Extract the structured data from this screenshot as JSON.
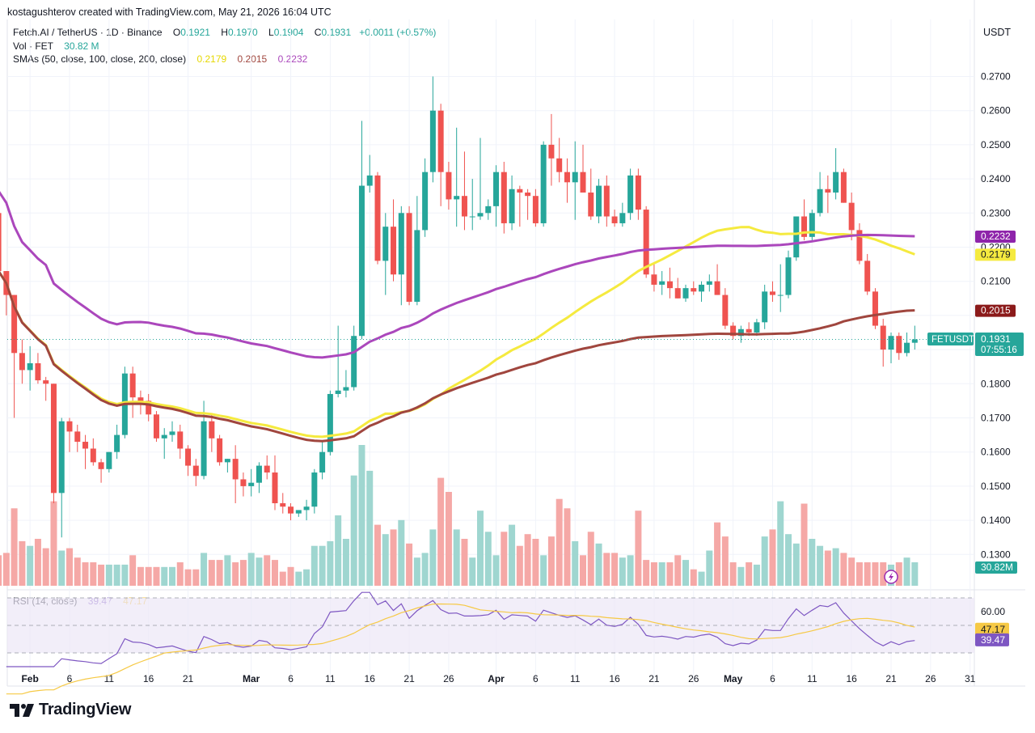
{
  "caption": "kostagushterov created with TradingView.com, May 21, 2026 16:04 UTC",
  "legend": {
    "symbol": "Fetch.AI / TetherUS · 1D · Binance",
    "o_label": "O",
    "o": "0.1921",
    "h_label": "H",
    "h": "0.1970",
    "l_label": "L",
    "l": "0.1904",
    "c_label": "C",
    "c": "0.1931",
    "change": "+0.0011 (+0.57%)",
    "vol_label": "Vol · FET",
    "vol": "30.82 M",
    "sma_label": "SMAs (50, close, 100, close, 200, close)",
    "sma50": "0.2179",
    "sma100": "0.2015",
    "sma200": "0.2232",
    "rsi_label": "RSI (14, close)",
    "rsi": "39.47",
    "rsi_ma": "47.17"
  },
  "unit": "USDT",
  "brand": "TradingView",
  "colors": {
    "up": "#26a69a",
    "down": "#ef5350",
    "vol_up": "#9fd6d0",
    "vol_down": "#f5a8a6",
    "sma50": "#f5ea3f",
    "sma100": "#a0463e",
    "sma200": "#ab47bc",
    "rsi": "#7e57c2",
    "rsi_ma": "#f6c945",
    "rsi_band": "#ede7f6"
  },
  "chart_data": {
    "type": "candlestick",
    "price_axis": {
      "ticks": [
        "0.1300",
        "0.1400",
        "0.1500",
        "0.1600",
        "0.1700",
        "0.1800",
        "0.2100",
        "0.2200",
        "0.2300",
        "0.2400",
        "0.2500",
        "0.2600",
        "0.2700"
      ]
    },
    "time_axis": [
      {
        "label": "Feb",
        "date": "2026-02-01",
        "bold": true
      },
      {
        "label": "6",
        "date": "2026-02-06"
      },
      {
        "label": "11",
        "date": "2026-02-11"
      },
      {
        "label": "16",
        "date": "2026-02-16"
      },
      {
        "label": "21",
        "date": "2026-02-21"
      },
      {
        "label": "Mar",
        "date": "2026-03-01",
        "bold": true
      },
      {
        "label": "6",
        "date": "2026-03-06"
      },
      {
        "label": "11",
        "date": "2026-03-11"
      },
      {
        "label": "16",
        "date": "2026-03-16"
      },
      {
        "label": "21",
        "date": "2026-03-21"
      },
      {
        "label": "26",
        "date": "2026-03-26"
      },
      {
        "label": "Apr",
        "date": "2026-04-01",
        "bold": true
      },
      {
        "label": "6",
        "date": "2026-04-06"
      },
      {
        "label": "11",
        "date": "2026-04-11"
      },
      {
        "label": "16",
        "date": "2026-04-16"
      },
      {
        "label": "21",
        "date": "2026-04-21"
      },
      {
        "label": "26",
        "date": "2026-04-26"
      },
      {
        "label": "May",
        "date": "2026-05-01",
        "bold": true
      },
      {
        "label": "6",
        "date": "2026-05-06"
      },
      {
        "label": "11",
        "date": "2026-05-11"
      },
      {
        "label": "16",
        "date": "2026-05-16"
      },
      {
        "label": "21",
        "date": "2026-05-21"
      },
      {
        "label": "26",
        "date": "2026-05-26"
      },
      {
        "label": "31",
        "date": "2026-05-31"
      }
    ],
    "price_tags": [
      {
        "label": "0.2232",
        "series": "sma200"
      },
      {
        "label": "0.2179",
        "series": "sma50"
      },
      {
        "label": "0.2015",
        "series": "sma100"
      },
      {
        "label": "0.1931",
        "series": "last",
        "symbol": "FETUSDT",
        "countdown": "07:55:16"
      }
    ],
    "volume_tag": "30.82M",
    "rsi_axis": {
      "ticks": [
        "60.00"
      ]
    },
    "rsi_tags": [
      "47.17",
      "39.47"
    ],
    "start_date": "2026-01-28",
    "candles": [
      [
        0.23,
        0.232,
        0.213,
        0.213
      ],
      [
        0.213,
        0.213,
        0.2,
        0.206
      ],
      [
        0.206,
        0.206,
        0.17,
        0.189
      ],
      [
        0.189,
        0.193,
        0.18,
        0.184
      ],
      [
        0.184,
        0.191,
        0.178,
        0.186
      ],
      [
        0.186,
        0.189,
        0.18,
        0.181
      ],
      [
        0.181,
        0.182,
        0.175,
        0.18
      ],
      [
        0.18,
        0.18,
        0.145,
        0.148
      ],
      [
        0.148,
        0.17,
        0.135,
        0.169
      ],
      [
        0.169,
        0.17,
        0.16,
        0.166
      ],
      [
        0.166,
        0.168,
        0.16,
        0.163
      ],
      [
        0.163,
        0.165,
        0.155,
        0.161
      ],
      [
        0.161,
        0.164,
        0.156,
        0.157
      ],
      [
        0.157,
        0.158,
        0.151,
        0.155
      ],
      [
        0.155,
        0.16,
        0.154,
        0.16
      ],
      [
        0.16,
        0.168,
        0.158,
        0.165
      ],
      [
        0.165,
        0.185,
        0.164,
        0.183
      ],
      [
        0.183,
        0.185,
        0.17,
        0.176
      ],
      [
        0.176,
        0.178,
        0.171,
        0.175
      ],
      [
        0.175,
        0.177,
        0.169,
        0.171
      ],
      [
        0.171,
        0.172,
        0.163,
        0.164
      ],
      [
        0.164,
        0.167,
        0.158,
        0.165
      ],
      [
        0.165,
        0.169,
        0.163,
        0.166
      ],
      [
        0.166,
        0.168,
        0.158,
        0.161
      ],
      [
        0.161,
        0.162,
        0.153,
        0.156
      ],
      [
        0.156,
        0.158,
        0.15,
        0.153
      ],
      [
        0.153,
        0.175,
        0.152,
        0.169
      ],
      [
        0.169,
        0.171,
        0.16,
        0.164
      ],
      [
        0.164,
        0.165,
        0.156,
        0.157
      ],
      [
        0.157,
        0.158,
        0.154,
        0.158
      ],
      [
        0.158,
        0.162,
        0.145,
        0.152
      ],
      [
        0.152,
        0.154,
        0.147,
        0.15
      ],
      [
        0.15,
        0.155,
        0.147,
        0.151
      ],
      [
        0.151,
        0.157,
        0.148,
        0.156
      ],
      [
        0.156,
        0.159,
        0.152,
        0.154
      ],
      [
        0.154,
        0.159,
        0.143,
        0.145
      ],
      [
        0.145,
        0.148,
        0.142,
        0.144
      ],
      [
        0.144,
        0.145,
        0.14,
        0.142
      ],
      [
        0.142,
        0.143,
        0.141,
        0.143
      ],
      [
        0.143,
        0.146,
        0.14,
        0.144
      ],
      [
        0.144,
        0.155,
        0.142,
        0.154
      ],
      [
        0.154,
        0.163,
        0.152,
        0.16
      ],
      [
        0.16,
        0.178,
        0.159,
        0.177
      ],
      [
        0.177,
        0.197,
        0.176,
        0.178
      ],
      [
        0.178,
        0.184,
        0.176,
        0.179
      ],
      [
        0.179,
        0.197,
        0.178,
        0.194
      ],
      [
        0.194,
        0.257,
        0.193,
        0.238
      ],
      [
        0.238,
        0.247,
        0.236,
        0.241
      ],
      [
        0.241,
        0.242,
        0.215,
        0.216
      ],
      [
        0.216,
        0.23,
        0.206,
        0.226
      ],
      [
        0.226,
        0.234,
        0.21,
        0.212
      ],
      [
        0.212,
        0.232,
        0.203,
        0.23
      ],
      [
        0.23,
        0.232,
        0.203,
        0.204
      ],
      [
        0.204,
        0.235,
        0.203,
        0.225
      ],
      [
        0.225,
        0.246,
        0.223,
        0.242
      ],
      [
        0.242,
        0.27,
        0.239,
        0.26
      ],
      [
        0.26,
        0.262,
        0.232,
        0.242
      ],
      [
        0.242,
        0.245,
        0.231,
        0.234
      ],
      [
        0.234,
        0.255,
        0.226,
        0.235
      ],
      [
        0.235,
        0.248,
        0.225,
        0.229
      ],
      [
        0.229,
        0.24,
        0.225,
        0.229
      ],
      [
        0.229,
        0.252,
        0.228,
        0.23
      ],
      [
        0.23,
        0.234,
        0.228,
        0.232
      ],
      [
        0.232,
        0.244,
        0.226,
        0.242
      ],
      [
        0.242,
        0.245,
        0.224,
        0.227
      ],
      [
        0.227,
        0.241,
        0.225,
        0.237
      ],
      [
        0.237,
        0.238,
        0.226,
        0.236
      ],
      [
        0.236,
        0.237,
        0.228,
        0.235
      ],
      [
        0.235,
        0.237,
        0.226,
        0.227
      ],
      [
        0.227,
        0.251,
        0.226,
        0.25
      ],
      [
        0.25,
        0.259,
        0.238,
        0.246
      ],
      [
        0.246,
        0.252,
        0.239,
        0.242
      ],
      [
        0.242,
        0.246,
        0.233,
        0.239
      ],
      [
        0.239,
        0.251,
        0.228,
        0.242
      ],
      [
        0.242,
        0.25,
        0.236,
        0.236
      ],
      [
        0.236,
        0.243,
        0.228,
        0.229
      ],
      [
        0.229,
        0.24,
        0.227,
        0.238
      ],
      [
        0.238,
        0.241,
        0.226,
        0.229
      ],
      [
        0.229,
        0.231,
        0.226,
        0.227
      ],
      [
        0.227,
        0.233,
        0.226,
        0.23
      ],
      [
        0.23,
        0.243,
        0.228,
        0.241
      ],
      [
        0.241,
        0.243,
        0.228,
        0.231
      ],
      [
        0.231,
        0.232,
        0.211,
        0.212
      ],
      [
        0.212,
        0.215,
        0.207,
        0.209
      ],
      [
        0.209,
        0.213,
        0.206,
        0.21
      ],
      [
        0.21,
        0.214,
        0.205,
        0.208
      ],
      [
        0.208,
        0.211,
        0.205,
        0.205
      ],
      [
        0.205,
        0.209,
        0.204,
        0.208
      ],
      [
        0.208,
        0.21,
        0.206,
        0.207
      ],
      [
        0.207,
        0.21,
        0.204,
        0.209
      ],
      [
        0.209,
        0.212,
        0.207,
        0.21
      ],
      [
        0.21,
        0.215,
        0.206,
        0.206
      ],
      [
        0.206,
        0.208,
        0.196,
        0.197
      ],
      [
        0.197,
        0.198,
        0.193,
        0.194
      ],
      [
        0.194,
        0.197,
        0.192,
        0.196
      ],
      [
        0.196,
        0.198,
        0.194,
        0.195
      ],
      [
        0.195,
        0.199,
        0.194,
        0.198
      ],
      [
        0.198,
        0.209,
        0.196,
        0.207
      ],
      [
        0.207,
        0.21,
        0.204,
        0.206
      ],
      [
        0.206,
        0.215,
        0.201,
        0.206
      ],
      [
        0.206,
        0.219,
        0.205,
        0.217
      ],
      [
        0.217,
        0.229,
        0.216,
        0.229
      ],
      [
        0.229,
        0.234,
        0.222,
        0.223
      ],
      [
        0.223,
        0.231,
        0.222,
        0.23
      ],
      [
        0.23,
        0.242,
        0.229,
        0.237
      ],
      [
        0.237,
        0.241,
        0.23,
        0.236
      ],
      [
        0.236,
        0.249,
        0.234,
        0.242
      ],
      [
        0.242,
        0.243,
        0.233,
        0.233
      ],
      [
        0.233,
        0.236,
        0.222,
        0.225
      ],
      [
        0.225,
        0.227,
        0.215,
        0.216
      ],
      [
        0.216,
        0.218,
        0.206,
        0.207
      ],
      [
        0.207,
        0.208,
        0.196,
        0.197
      ],
      [
        0.197,
        0.199,
        0.185,
        0.19
      ],
      [
        0.19,
        0.195,
        0.186,
        0.194
      ],
      [
        0.194,
        0.195,
        0.187,
        0.189
      ],
      [
        0.189,
        0.195,
        0.188,
        0.192
      ],
      [
        0.192,
        0.197,
        0.19,
        0.193
      ]
    ],
    "volume": [
      13,
      14,
      33,
      19,
      17,
      20,
      16,
      36,
      15,
      16,
      12,
      10,
      10,
      9,
      9,
      9,
      9,
      13,
      8,
      8,
      8,
      8,
      8,
      10,
      7,
      7,
      14,
      11,
      11,
      13,
      10,
      11,
      14,
      12,
      13,
      11,
      6,
      8,
      6,
      7,
      17,
      17,
      19,
      30,
      20,
      47,
      60,
      49,
      26,
      22,
      24,
      28,
      18,
      12,
      14,
      24,
      46,
      40,
      24,
      20,
      12,
      32,
      23,
      13,
      23,
      26,
      17,
      22,
      20,
      13,
      21,
      37,
      33,
      19,
      13,
      23,
      18,
      14,
      14,
      12,
      13,
      32,
      11,
      10,
      10,
      10,
      13,
      11,
      7,
      6,
      15,
      27,
      21,
      10,
      8,
      10,
      9,
      21,
      24,
      36,
      22,
      18,
      35,
      20,
      17,
      15,
      16,
      14,
      12,
      10,
      10,
      10,
      10,
      9,
      10,
      12,
      10
    ]
  }
}
